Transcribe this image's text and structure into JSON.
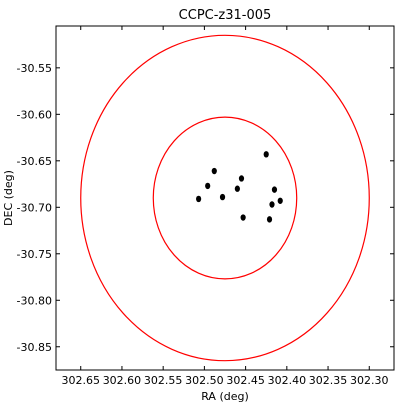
{
  "chart_data": {
    "type": "scatter",
    "title": "CCPC-z31-005",
    "xlabel": "RA (deg)",
    "ylabel": "DEC (deg)",
    "xlim": [
      302.68,
      302.27
    ],
    "ylim": [
      -30.875,
      -30.505
    ],
    "x_inverted": true,
    "xticks": [
      302.65,
      302.6,
      302.55,
      302.5,
      302.45,
      302.4,
      302.35,
      302.3
    ],
    "xtick_labels": [
      "302.65",
      "302.60",
      "302.55",
      "302.50",
      "302.45",
      "302.40",
      "302.35",
      "302.30"
    ],
    "yticks": [
      -30.55,
      -30.6,
      -30.65,
      -30.7,
      -30.75,
      -30.8,
      -30.85
    ],
    "ytick_labels": [
      "-30.55",
      "-30.60",
      "-30.65",
      "-30.70",
      "-30.75",
      "-30.80",
      "-30.85"
    ],
    "grid": false,
    "points": {
      "color": "#000000",
      "x": [
        302.507,
        302.496,
        302.488,
        302.478,
        302.46,
        302.455,
        302.453,
        302.425,
        302.421,
        302.418,
        302.415,
        302.408
      ],
      "y": [
        -30.691,
        -30.677,
        -30.661,
        -30.689,
        -30.68,
        -30.669,
        -30.711,
        -30.643,
        -30.713,
        -30.697,
        -30.681,
        -30.693
      ]
    },
    "circles": {
      "color": "#ff0000",
      "center": [
        302.475,
        -30.69
      ],
      "radii_deg": [
        0.087,
        0.175
      ]
    }
  }
}
